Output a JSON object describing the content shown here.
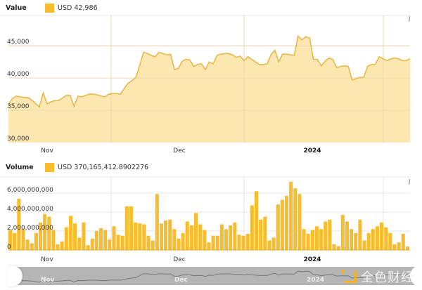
{
  "value_legend": {
    "title": "Value",
    "series_label": "USD 42,986",
    "color": "#f7bd2e"
  },
  "volume_legend": {
    "title": "Volume",
    "series_label": "USD 370,165,412.8902276",
    "color": "#f7bd2e"
  },
  "edge_label": "J",
  "navigator": {
    "labels": [
      "Nov",
      "Dec",
      "2024"
    ]
  },
  "watermark": {
    "text": "全色财经"
  },
  "colors": {
    "line": "#e8b84a",
    "area": "#fde3a3",
    "bar": "#f7bd2e",
    "grid": "#e6e6e6",
    "navigator": "#b5b5b5"
  },
  "chart_data": [
    {
      "type": "area",
      "title": "Value",
      "legend": "USD 42,986",
      "ylabel": "",
      "xlabel": "",
      "y_ticks": [
        "30,000",
        "35,000",
        "40,000",
        "45,000"
      ],
      "ylim": [
        30000,
        48000
      ],
      "x_ticks": [
        "Nov",
        "Dec",
        "2024"
      ],
      "grid": true,
      "values": [
        35900,
        36800,
        37200,
        37100,
        37000,
        37000,
        36600,
        36100,
        35500,
        37700,
        36000,
        36300,
        36500,
        36500,
        36900,
        37300,
        37300,
        35600,
        37200,
        37100,
        37300,
        37500,
        37500,
        37400,
        37200,
        37100,
        37500,
        37600,
        37600,
        37500,
        38400,
        39200,
        39600,
        40100,
        42000,
        44000,
        43800,
        43500,
        43300,
        44000,
        43800,
        43600,
        43700,
        41300,
        41500,
        42600,
        42900,
        42800,
        41800,
        42100,
        42200,
        41300,
        42500,
        42200,
        43500,
        43700,
        43800,
        43800,
        43600,
        43200,
        43400,
        42700,
        43300,
        42900,
        42500,
        42100,
        42100,
        42200,
        43600,
        44300,
        42500,
        43700,
        43700,
        43600,
        43500,
        46500,
        45900,
        46400,
        46200,
        42900,
        42900,
        41900,
        42600,
        43100,
        42900,
        41600,
        41800,
        41900,
        41800,
        39700,
        39900,
        40100,
        40100,
        41800,
        42100,
        42100,
        43300,
        43000,
        42700,
        43000,
        43100,
        43000,
        42700,
        42700,
        42986
      ],
      "series": [
        {
          "name": "USD",
          "color": "#f7bd2e"
        }
      ]
    },
    {
      "type": "bar",
      "title": "Volume",
      "legend": "USD 370,165,412.8902276",
      "y_ticks": [
        "0",
        "2,000,000,000",
        "4,000,000,000",
        "6,000,000,000"
      ],
      "ylim": [
        0,
        7500000000
      ],
      "x_ticks": [
        "Nov",
        "Dec",
        "2024"
      ],
      "grid": true,
      "values": [
        2100000000,
        1800000000,
        5400000000,
        2200000000,
        1100000000,
        700000000,
        1800000000,
        2900000000,
        3800000000,
        3500000000,
        2100000000,
        600000000,
        900000000,
        2400000000,
        3600000000,
        2800000000,
        1300000000,
        2900000000,
        500000000,
        1200000000,
        2000000000,
        2300000000,
        2100000000,
        1100000000,
        2500000000,
        1600000000,
        1500000000,
        4600000000,
        4600000000,
        2900000000,
        2800000000,
        2700000000,
        1500000000,
        1000000000,
        5900000000,
        2800000000,
        3100000000,
        3200000000,
        2200000000,
        1200000000,
        1800000000,
        3000000000,
        2600000000,
        3900000000,
        2700000000,
        2100000000,
        800000000,
        1500000000,
        1500000000,
        2700000000,
        2200000000,
        2600000000,
        2900000000,
        1600000000,
        1500000000,
        1700000000,
        4700000000,
        6200000000,
        3200000000,
        3500000000,
        1000000000,
        1300000000,
        4800000000,
        5300000000,
        5700000000,
        7200000000,
        6500000000,
        5900000000,
        2200000000,
        1700000000,
        2100000000,
        2500000000,
        2200000000,
        3000000000,
        3200000000,
        600000000,
        400000000,
        3700000000,
        3000000000,
        2200000000,
        1800000000,
        3200000000,
        1000000000,
        1800000000,
        2200000000,
        2500000000,
        2900000000,
        2400000000,
        1800000000,
        600000000,
        800000000,
        1700000000,
        370165413
      ]
    }
  ]
}
